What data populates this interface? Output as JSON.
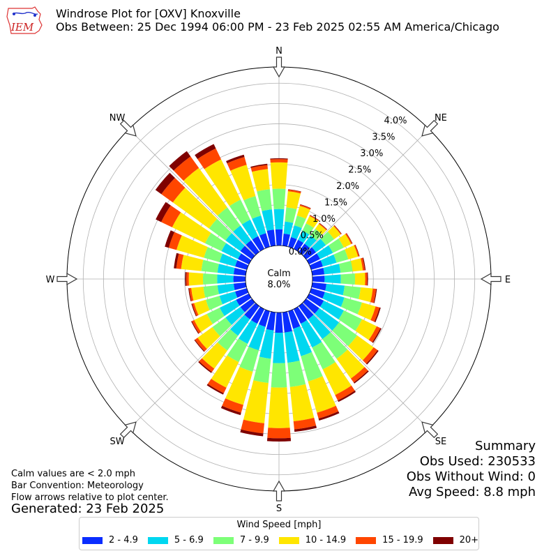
{
  "header": {
    "title": "Windrose Plot for [OXV] Knoxville",
    "subtitle": "Obs Between: 25 Dec 1994 06:00 PM - 23 Feb 2025 02:55 AM America/Chicago",
    "logo_text": "IEM"
  },
  "notes": {
    "calm_def": "Calm values are < 2.0 mph",
    "bar_convention": "Bar Convention: Meteorology",
    "flow_arrows": "Flow arrows relative to plot center.",
    "generated": "Generated: 23 Feb 2025"
  },
  "summary": {
    "heading": "Summary",
    "obs_used": "Obs Used: 230533",
    "obs_without_wind": "Obs Without Wind: 0",
    "avg_speed": "Avg Speed: 8.8 mph"
  },
  "legend": {
    "title": "Wind Speed [mph]",
    "items": [
      {
        "label": "2 - 4.9",
        "color": "#0a2dff"
      },
      {
        "label": "5 - 6.9",
        "color": "#00d7f0"
      },
      {
        "label": "7 - 9.9",
        "color": "#7dff78"
      },
      {
        "label": "10 - 14.9",
        "color": "#ffe600"
      },
      {
        "label": "15 - 19.9",
        "color": "#ff4600"
      },
      {
        "label": "20+",
        "color": "#7f0000"
      }
    ]
  },
  "chart_data": {
    "type": "windrose",
    "radial_unit": "%",
    "radial_ticks": [
      "0.0%",
      "0.5%",
      "1.0%",
      "1.5%",
      "2.0%",
      "2.5%",
      "3.0%",
      "3.5%",
      "4.0%"
    ],
    "rmax": 4.4,
    "calm": {
      "label": "Calm",
      "value": "8.0%"
    },
    "compass_labels": {
      "N": "N",
      "NE": "NE",
      "E": "E",
      "SE": "SE",
      "S": "S",
      "SW": "SW",
      "W": "W",
      "NW": "NW"
    },
    "directions": [
      0,
      10,
      20,
      30,
      40,
      50,
      60,
      70,
      80,
      90,
      100,
      110,
      120,
      130,
      140,
      150,
      160,
      170,
      180,
      190,
      200,
      210,
      220,
      230,
      240,
      250,
      260,
      270,
      280,
      290,
      300,
      310,
      320,
      330,
      340,
      350
    ],
    "series": [
      {
        "name": "2 - 4.9",
        "color": "#0a2dff",
        "values": [
          0.4,
          0.3,
          0.25,
          0.25,
          0.25,
          0.3,
          0.3,
          0.3,
          0.3,
          0.3,
          0.35,
          0.35,
          0.4,
          0.4,
          0.4,
          0.4,
          0.45,
          0.5,
          0.5,
          0.45,
          0.4,
          0.4,
          0.4,
          0.35,
          0.35,
          0.3,
          0.3,
          0.3,
          0.3,
          0.3,
          0.3,
          0.35,
          0.35,
          0.35,
          0.35,
          0.4
        ]
      },
      {
        "name": "5 - 6.9",
        "color": "#00d7f0",
        "values": [
          0.5,
          0.3,
          0.3,
          0.25,
          0.25,
          0.3,
          0.35,
          0.35,
          0.4,
          0.4,
          0.45,
          0.5,
          0.55,
          0.6,
          0.6,
          0.65,
          0.7,
          0.75,
          0.75,
          0.7,
          0.6,
          0.55,
          0.5,
          0.45,
          0.45,
          0.4,
          0.4,
          0.4,
          0.4,
          0.4,
          0.45,
          0.45,
          0.45,
          0.45,
          0.45,
          0.5
        ]
      },
      {
        "name": "7 - 9.9",
        "color": "#7dff78",
        "values": [
          0.5,
          0.35,
          0.25,
          0.2,
          0.2,
          0.25,
          0.3,
          0.3,
          0.3,
          0.35,
          0.4,
          0.45,
          0.5,
          0.55,
          0.6,
          0.6,
          0.65,
          0.6,
          0.6,
          0.6,
          0.55,
          0.5,
          0.45,
          0.4,
          0.35,
          0.35,
          0.35,
          0.35,
          0.4,
          0.4,
          0.45,
          0.5,
          0.55,
          0.55,
          0.5,
          0.5
        ]
      },
      {
        "name": "10 - 14.9",
        "color": "#ffe600",
        "values": [
          0.65,
          0.4,
          0.25,
          0.2,
          0.15,
          0.2,
          0.2,
          0.25,
          0.25,
          0.25,
          0.3,
          0.35,
          0.4,
          0.5,
          0.6,
          0.7,
          0.8,
          0.85,
          1.0,
          1.0,
          0.85,
          0.7,
          0.55,
          0.45,
          0.35,
          0.3,
          0.3,
          0.35,
          0.5,
          0.7,
          0.9,
          1.1,
          1.2,
          1.1,
          0.8,
          0.5
        ]
      },
      {
        "name": "15 - 19.9",
        "color": "#ff4600",
        "values": [
          0.08,
          0.04,
          0.03,
          0.02,
          0.02,
          0.02,
          0.03,
          0.03,
          0.05,
          0.05,
          0.08,
          0.1,
          0.1,
          0.12,
          0.12,
          0.15,
          0.15,
          0.2,
          0.25,
          0.25,
          0.2,
          0.15,
          0.1,
          0.08,
          0.06,
          0.05,
          0.05,
          0.06,
          0.12,
          0.2,
          0.3,
          0.35,
          0.35,
          0.3,
          0.2,
          0.1
        ]
      },
      {
        "name": "20+",
        "color": "#7f0000",
        "values": [
          0.02,
          0.01,
          0.01,
          0.01,
          0.01,
          0.01,
          0.01,
          0.01,
          0.02,
          0.02,
          0.02,
          0.03,
          0.03,
          0.03,
          0.03,
          0.04,
          0.05,
          0.06,
          0.08,
          0.07,
          0.06,
          0.04,
          0.03,
          0.02,
          0.02,
          0.02,
          0.02,
          0.03,
          0.06,
          0.1,
          0.15,
          0.18,
          0.16,
          0.12,
          0.06,
          0.03
        ]
      }
    ]
  }
}
